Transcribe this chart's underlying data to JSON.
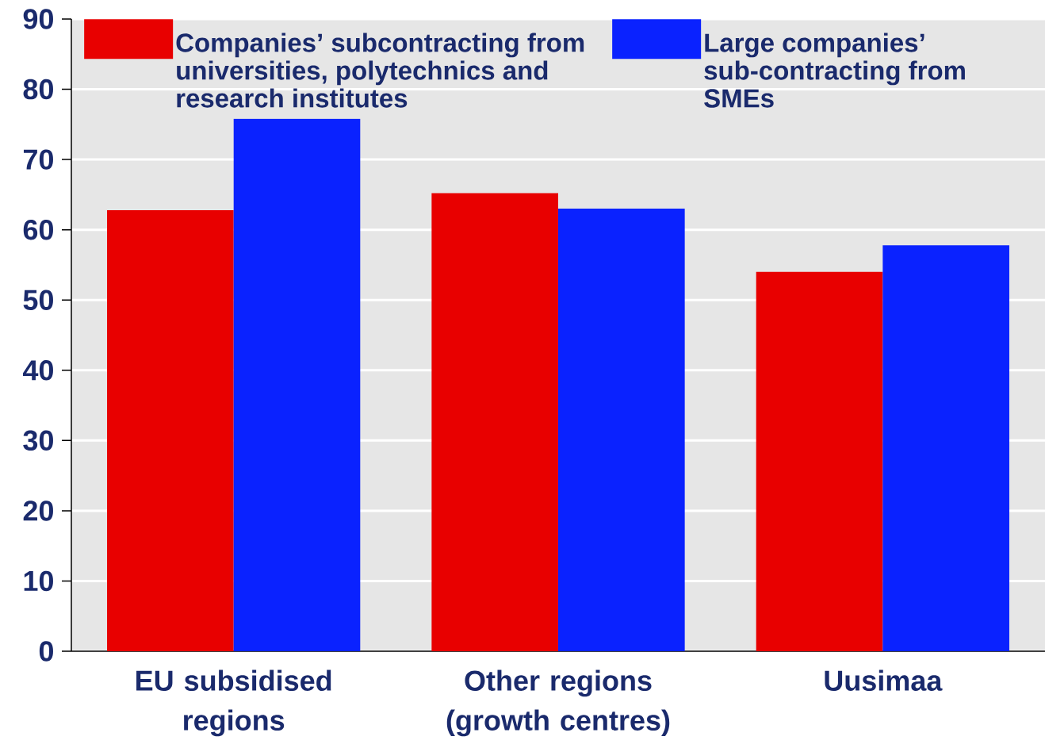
{
  "chart_data": {
    "type": "bar",
    "categories": [
      "EU subsidised regions",
      "Other regions (growth centres)",
      "Uusimaa"
    ],
    "series": [
      {
        "name": "Companies’ subcontracting from universities, polytechnics and research institutes",
        "color": "#e80000",
        "values": [
          62.8,
          65.2,
          54.0
        ]
      },
      {
        "name": "Large companies’ sub-contracting from SMEs",
        "color": "#0a22ff",
        "values": [
          75.8,
          63.0,
          57.8
        ]
      }
    ],
    "ylim": [
      0,
      90
    ],
    "yticks": [
      0,
      10,
      20,
      30,
      40,
      50,
      60,
      70,
      80,
      90
    ],
    "grid": "y",
    "legend": "top"
  }
}
